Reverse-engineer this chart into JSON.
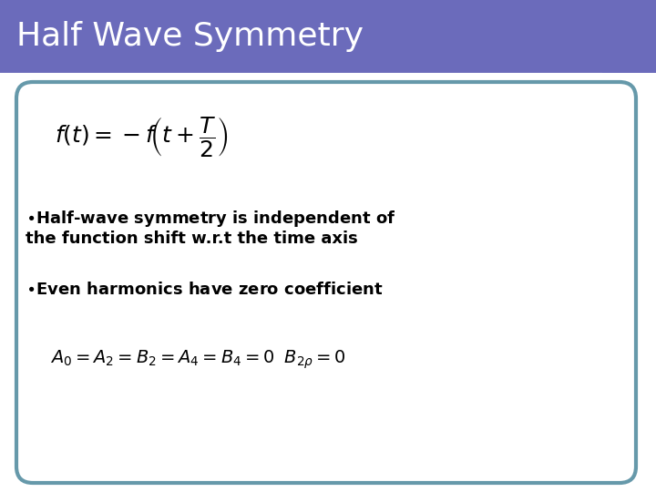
{
  "title": "Half Wave Symmetry",
  "title_bg_color": "#6B6BBB",
  "title_text_color": "#FFFFFF",
  "slide_bg_color": "#FFFFFF",
  "border_color": "#6699AA",
  "title_fontsize": 26,
  "formula1_fontsize": 18,
  "bullet_fontsize": 13,
  "formula2_fontsize": 14
}
